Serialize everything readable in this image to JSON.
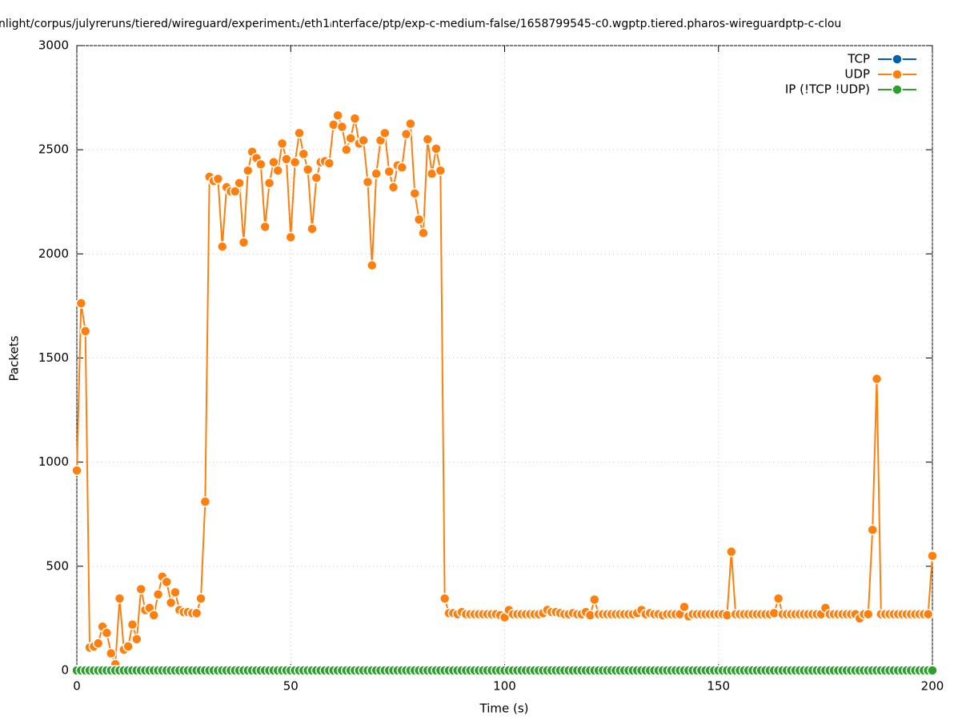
{
  "chart_data": {
    "type": "line",
    "title": "nlight/corpus/julyreruns/tiered/wireguard/experiment₁/eth1ᵢnterface/ptp/exp-c-medium-false/1658799545-c0.wgptp.tiered.pharos-wireguardptp-c-clou",
    "x_label": "Time (s)",
    "y_label": "Packets",
    "xlim": [
      0,
      200
    ],
    "xticks": [
      0,
      50,
      100,
      150,
      200
    ],
    "ylim": [
      0,
      3000
    ],
    "yticks": [
      0,
      500,
      1000,
      1500,
      2000,
      2500,
      3000
    ],
    "grid": true,
    "legend": "top right",
    "x": [
      0,
      1,
      2,
      3,
      4,
      5,
      6,
      7,
      8,
      9,
      10,
      11,
      12,
      13,
      14,
      15,
      16,
      17,
      18,
      19,
      20,
      21,
      22,
      23,
      24,
      25,
      26,
      27,
      28,
      29,
      30,
      31,
      32,
      33,
      34,
      35,
      36,
      37,
      38,
      39,
      40,
      41,
      42,
      43,
      44,
      45,
      46,
      47,
      48,
      49,
      50,
      51,
      52,
      53,
      54,
      55,
      56,
      57,
      58,
      59,
      60,
      61,
      62,
      63,
      64,
      65,
      66,
      67,
      68,
      69,
      70,
      71,
      72,
      73,
      74,
      75,
      76,
      77,
      78,
      79,
      80,
      81,
      82,
      83,
      84,
      85,
      86,
      87,
      88,
      89,
      90,
      91,
      92,
      93,
      94,
      95,
      96,
      97,
      98,
      99,
      100,
      101,
      102,
      103,
      104,
      105,
      106,
      107,
      108,
      109,
      110,
      111,
      112,
      113,
      114,
      115,
      116,
      117,
      118,
      119,
      120,
      121,
      122,
      123,
      124,
      125,
      126,
      127,
      128,
      129,
      130,
      131,
      132,
      133,
      134,
      135,
      136,
      137,
      138,
      139,
      140,
      141,
      142,
      143,
      144,
      145,
      146,
      147,
      148,
      149,
      150,
      151,
      152,
      153,
      154,
      155,
      156,
      157,
      158,
      159,
      160,
      161,
      162,
      163,
      164,
      165,
      166,
      167,
      168,
      169,
      170,
      171,
      172,
      173,
      174,
      175,
      176,
      177,
      178,
      179,
      180,
      181,
      182,
      183,
      184,
      185,
      186,
      187,
      188,
      189,
      190,
      191,
      192,
      193,
      194,
      195,
      196,
      197,
      198,
      199,
      200
    ],
    "series": [
      {
        "name": "TCP",
        "color": "#0060ad",
        "values": [
          0,
          0,
          0,
          0,
          0,
          0,
          0,
          0,
          0,
          0,
          0,
          0,
          0,
          0,
          0,
          0,
          0,
          0,
          0,
          0,
          0,
          0,
          0,
          0,
          0,
          0,
          0,
          0,
          0,
          0,
          0,
          0,
          0,
          0,
          0,
          0,
          0,
          0,
          0,
          0,
          0,
          0,
          0,
          0,
          0,
          0,
          0,
          0,
          0,
          0,
          0,
          0,
          0,
          0,
          0,
          0,
          0,
          0,
          0,
          0,
          0,
          0,
          0,
          0,
          0,
          0,
          0,
          0,
          0,
          0,
          0,
          0,
          0,
          0,
          0,
          0,
          0,
          0,
          0,
          0,
          0,
          0,
          0,
          0,
          0,
          0,
          0,
          0,
          0,
          0,
          0,
          0,
          0,
          0,
          0,
          0,
          0,
          0,
          0,
          0,
          0,
          0,
          0,
          0,
          0,
          0,
          0,
          0,
          0,
          0,
          0,
          0,
          0,
          0,
          0,
          0,
          0,
          0,
          0,
          0,
          0,
          0,
          0,
          0,
          0,
          0,
          0,
          0,
          0,
          0,
          0,
          0,
          0,
          0,
          0,
          0,
          0,
          0,
          0,
          0,
          0,
          0,
          0,
          0,
          0,
          0,
          0,
          0,
          0,
          0,
          0,
          0,
          0,
          0,
          0,
          0,
          0,
          0,
          0,
          0,
          0,
          0,
          0,
          0,
          0,
          0,
          0,
          0,
          0,
          0,
          0,
          0,
          0,
          0,
          0,
          0,
          0,
          0,
          0,
          0,
          0,
          0,
          0,
          0,
          0,
          0,
          0,
          0,
          0,
          0,
          0,
          0,
          0,
          0,
          0,
          0,
          0,
          0,
          0,
          0,
          0
        ]
      },
      {
        "name": "UDP",
        "color": "#ff7f0e",
        "values": [
          960,
          1763,
          1629,
          110,
          115,
          130,
          210,
          180,
          82,
          30,
          345,
          100,
          115,
          220,
          150,
          390,
          290,
          300,
          265,
          365,
          450,
          425,
          325,
          375,
          290,
          280,
          280,
          275,
          275,
          345,
          810,
          2370,
          2350,
          2360,
          2035,
          2320,
          2300,
          2300,
          2340,
          2055,
          2400,
          2490,
          2460,
          2430,
          2130,
          2340,
          2440,
          2400,
          2530,
          2455,
          2080,
          2440,
          2580,
          2480,
          2405,
          2120,
          2365,
          2440,
          2445,
          2435,
          2620,
          2665,
          2610,
          2500,
          2555,
          2650,
          2530,
          2545,
          2345,
          1945,
          2385,
          2545,
          2580,
          2395,
          2320,
          2425,
          2415,
          2575,
          2625,
          2290,
          2165,
          2100,
          2550,
          2385,
          2505,
          2400,
          345,
          275,
          275,
          270,
          280,
          270,
          270,
          270,
          270,
          270,
          270,
          270,
          270,
          265,
          255,
          290,
          270,
          270,
          270,
          270,
          270,
          270,
          270,
          275,
          290,
          280,
          280,
          275,
          270,
          270,
          275,
          270,
          270,
          280,
          265,
          340,
          270,
          270,
          270,
          270,
          270,
          270,
          270,
          270,
          270,
          275,
          290,
          270,
          275,
          270,
          270,
          265,
          270,
          270,
          270,
          270,
          305,
          260,
          270,
          270,
          270,
          270,
          270,
          270,
          270,
          270,
          265,
          570,
          270,
          270,
          270,
          270,
          270,
          270,
          270,
          270,
          270,
          275,
          345,
          270,
          270,
          270,
          270,
          270,
          270,
          270,
          270,
          270,
          270,
          300,
          270,
          270,
          270,
          270,
          270,
          270,
          270,
          250,
          270,
          270,
          675,
          1400,
          270,
          270,
          270,
          270,
          270,
          270,
          270,
          270,
          270,
          270,
          270,
          270,
          550
        ]
      },
      {
        "name": "IP (!TCP  !UDP)",
        "color": "#2ca02c",
        "values": [
          0,
          0,
          0,
          0,
          0,
          0,
          0,
          0,
          0,
          0,
          0,
          0,
          0,
          0,
          0,
          0,
          0,
          0,
          0,
          0,
          0,
          0,
          0,
          0,
          0,
          0,
          0,
          0,
          0,
          0,
          0,
          0,
          0,
          0,
          0,
          0,
          0,
          0,
          0,
          0,
          0,
          0,
          0,
          0,
          0,
          0,
          0,
          0,
          0,
          0,
          0,
          0,
          0,
          0,
          0,
          0,
          0,
          0,
          0,
          0,
          0,
          0,
          0,
          0,
          0,
          0,
          0,
          0,
          0,
          0,
          0,
          0,
          0,
          0,
          0,
          0,
          0,
          0,
          0,
          0,
          0,
          0,
          0,
          0,
          0,
          0,
          0,
          0,
          0,
          0,
          0,
          0,
          0,
          0,
          0,
          0,
          0,
          0,
          0,
          0,
          0,
          0,
          0,
          0,
          0,
          0,
          0,
          0,
          0,
          0,
          0,
          0,
          0,
          0,
          0,
          0,
          0,
          0,
          0,
          0,
          0,
          0,
          0,
          0,
          0,
          0,
          0,
          0,
          0,
          0,
          0,
          0,
          0,
          0,
          0,
          0,
          0,
          0,
          0,
          0,
          0,
          0,
          0,
          0,
          0,
          0,
          0,
          0,
          0,
          0,
          0,
          0,
          0,
          0,
          0,
          0,
          0,
          0,
          0,
          0,
          0,
          0,
          0,
          0,
          0,
          0,
          0,
          0,
          0,
          0,
          0,
          0,
          0,
          0,
          0,
          0,
          0,
          0,
          0,
          0,
          0,
          0,
          0,
          0,
          0,
          0,
          0,
          0,
          0,
          0,
          0,
          0,
          0,
          0,
          0,
          0,
          0,
          0,
          0,
          0,
          0
        ]
      }
    ]
  }
}
